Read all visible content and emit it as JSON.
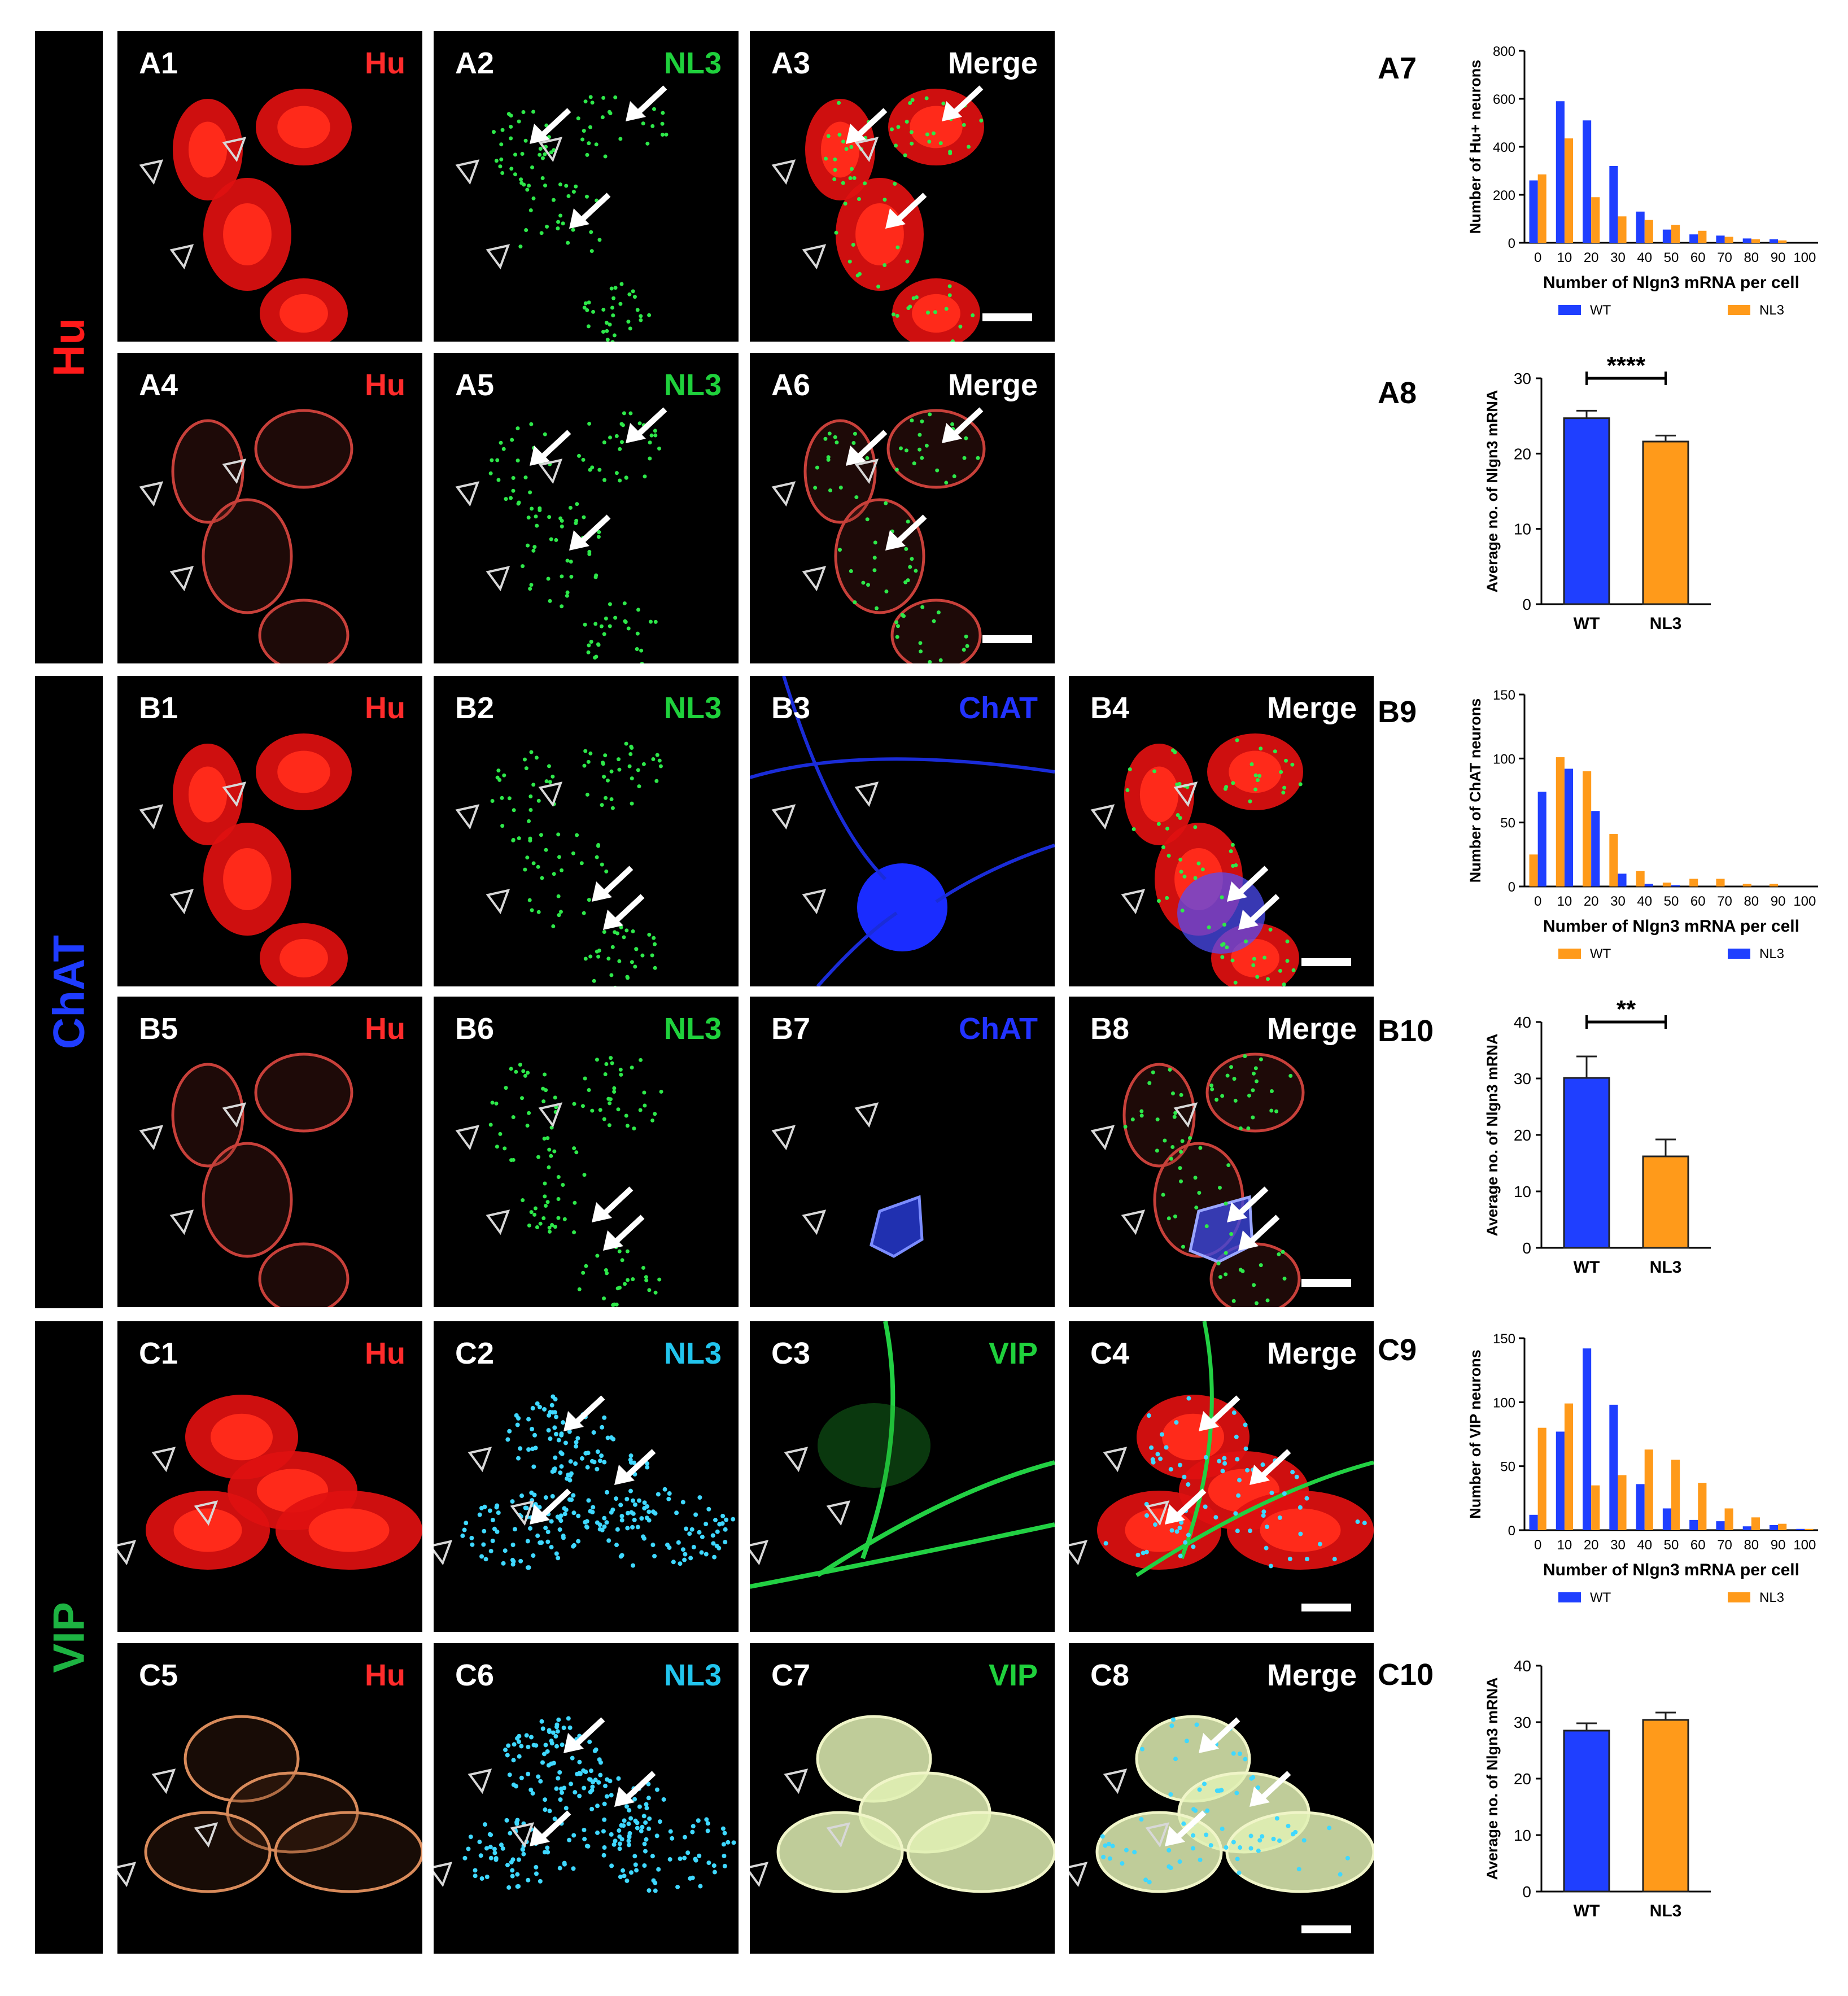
{
  "rows": [
    {
      "id": "Hu",
      "label": "Hu",
      "color": "#ff1a1a"
    },
    {
      "id": "ChAT",
      "label": "ChAT",
      "color": "#1f3cff"
    },
    {
      "id": "VIP",
      "label": "VIP",
      "color": "#1db342"
    }
  ],
  "panels": {
    "A1": {
      "label": "A1",
      "channel": "Hu",
      "color": "#ff2b2b"
    },
    "A2": {
      "label": "A2",
      "channel": "NL3",
      "color": "#1fd13c"
    },
    "A3": {
      "label": "A3",
      "channel": "Merge",
      "color": "#ffffff"
    },
    "A4": {
      "label": "A4",
      "channel": "Hu",
      "color": "#ff2b2b"
    },
    "A5": {
      "label": "A5",
      "channel": "NL3",
      "color": "#1fd13c"
    },
    "A6": {
      "label": "A6",
      "channel": "Merge",
      "color": "#ffffff"
    },
    "B1": {
      "label": "B1",
      "channel": "Hu",
      "color": "#ff2b2b"
    },
    "B2": {
      "label": "B2",
      "channel": "NL3",
      "color": "#1fd13c"
    },
    "B3": {
      "label": "B3",
      "channel": "ChAT",
      "color": "#2233ff"
    },
    "B4": {
      "label": "B4",
      "channel": "Merge",
      "color": "#ffffff"
    },
    "B5": {
      "label": "B5",
      "channel": "Hu",
      "color": "#ff2b2b"
    },
    "B6": {
      "label": "B6",
      "channel": "NL3",
      "color": "#1fd13c"
    },
    "B7": {
      "label": "B7",
      "channel": "ChAT",
      "color": "#2233ff"
    },
    "B8": {
      "label": "B8",
      "channel": "Merge",
      "color": "#ffffff"
    },
    "C1": {
      "label": "C1",
      "channel": "Hu",
      "color": "#ff2b2b"
    },
    "C2": {
      "label": "C2",
      "channel": "NL3",
      "color": "#22c5ee"
    },
    "C3": {
      "label": "C3",
      "channel": "VIP",
      "color": "#1fd13c"
    },
    "C4": {
      "label": "C4",
      "channel": "Merge",
      "color": "#ffffff"
    },
    "C5": {
      "label": "C5",
      "channel": "Hu",
      "color": "#ff2b2b"
    },
    "C6": {
      "label": "C6",
      "channel": "NL3",
      "color": "#22c5ee"
    },
    "C7": {
      "label": "C7",
      "channel": "VIP",
      "color": "#1fd13c"
    },
    "C8": {
      "label": "C8",
      "channel": "Merge",
      "color": "#ffffff"
    }
  },
  "graph_labels": {
    "A7": "A7",
    "A8": "A8",
    "B9": "B9",
    "B10": "B10",
    "C9": "C9",
    "C10": "C10"
  },
  "colors": {
    "wt": "#1f3fff",
    "nl3": "#ff9a1a"
  },
  "chart_data": [
    {
      "id": "A7",
      "type": "bar",
      "ylabel": "Number of Hu+ neurons",
      "xlabel": "Number of Nlgn3 mRNA per cell",
      "categories": [
        "0",
        "10",
        "20",
        "30",
        "40",
        "50",
        "60",
        "70",
        "80",
        "90",
        "100"
      ],
      "ylim": [
        0,
        800
      ],
      "yticks": [
        "0",
        "200",
        "400",
        "600",
        "800"
      ],
      "series": [
        {
          "name": "WT",
          "color": "#1f3fff",
          "values": [
            260,
            590,
            510,
            320,
            130,
            55,
            35,
            30,
            18,
            15,
            0
          ]
        },
        {
          "name": "NL3",
          "color": "#ff9a1a",
          "values": [
            285,
            435,
            190,
            110,
            95,
            75,
            50,
            25,
            15,
            10,
            0
          ]
        }
      ],
      "legend": [
        {
          "name": "WT",
          "color": "#1f3fff"
        },
        {
          "name": "NL3",
          "color": "#ff9a1a"
        }
      ]
    },
    {
      "id": "A8",
      "type": "bar",
      "ylabel": "Average no. of Nlgn3 mRNA",
      "categories": [
        "WT",
        "NL3"
      ],
      "values": [
        24.7,
        21.6
      ],
      "errors": [
        1.0,
        0.8
      ],
      "colors": [
        "#1f3fff",
        "#ff9a1a"
      ],
      "ylim": [
        0,
        30
      ],
      "yticks": [
        "0",
        "10",
        "20",
        "30"
      ],
      "significance": "****"
    },
    {
      "id": "B9",
      "type": "bar",
      "ylabel": "Number of ChAT neurons",
      "xlabel": "Number of Nlgn3 mRNA per cell",
      "categories": [
        "0",
        "10",
        "20",
        "30",
        "40",
        "50",
        "60",
        "70",
        "80",
        "90",
        "100"
      ],
      "ylim": [
        0,
        150
      ],
      "yticks": [
        "0",
        "50",
        "100",
        "150"
      ],
      "series": [
        {
          "name": "WT",
          "color": "#ff9a1a",
          "values": [
            25,
            101,
            90,
            41,
            12,
            3,
            6,
            6,
            2,
            2,
            0
          ]
        },
        {
          "name": "NL3",
          "color": "#1f3fff",
          "values": [
            74,
            92,
            59,
            10,
            2,
            1,
            0,
            0,
            0,
            0,
            0
          ]
        }
      ],
      "legend": [
        {
          "name": "WT",
          "color": "#ff9a1a"
        },
        {
          "name": "NL3",
          "color": "#1f3fff"
        }
      ]
    },
    {
      "id": "B10",
      "type": "bar",
      "ylabel": "Average no. of Nlgn3 mRNA",
      "categories": [
        "WT",
        "NL3"
      ],
      "values": [
        30.1,
        16.2
      ],
      "errors": [
        3.8,
        3.0
      ],
      "colors": [
        "#1f3fff",
        "#ff9a1a"
      ],
      "ylim": [
        0,
        40
      ],
      "yticks": [
        "0",
        "10",
        "20",
        "30",
        "40"
      ],
      "significance": "**"
    },
    {
      "id": "C9",
      "type": "bar",
      "ylabel": "Number of VIP neurons",
      "xlabel": "Number of Nlgn3 mRNA per cell",
      "categories": [
        "0",
        "10",
        "20",
        "30",
        "40",
        "50",
        "60",
        "70",
        "80",
        "90",
        "100"
      ],
      "ylim": [
        0,
        150
      ],
      "yticks": [
        "0",
        "50",
        "100",
        "150"
      ],
      "series": [
        {
          "name": "WT",
          "color": "#1f3fff",
          "values": [
            12,
            77,
            142,
            98,
            36,
            17,
            8,
            7,
            3,
            4,
            1
          ]
        },
        {
          "name": "NL3",
          "color": "#ff9a1a",
          "values": [
            80,
            99,
            35,
            43,
            63,
            55,
            37,
            17,
            10,
            5,
            1
          ]
        }
      ],
      "legend": [
        {
          "name": "WT",
          "color": "#1f3fff"
        },
        {
          "name": "NL3",
          "color": "#ff9a1a"
        }
      ]
    },
    {
      "id": "C10",
      "type": "bar",
      "ylabel": "Average no. of Nlgn3 mRNA",
      "categories": [
        "WT",
        "NL3"
      ],
      "values": [
        28.5,
        30.4
      ],
      "errors": [
        1.3,
        1.3
      ],
      "colors": [
        "#1f3fff",
        "#ff9a1a"
      ],
      "ylim": [
        0,
        40
      ],
      "yticks": [
        "0",
        "10",
        "20",
        "30",
        "40"
      ],
      "significance": ""
    }
  ]
}
